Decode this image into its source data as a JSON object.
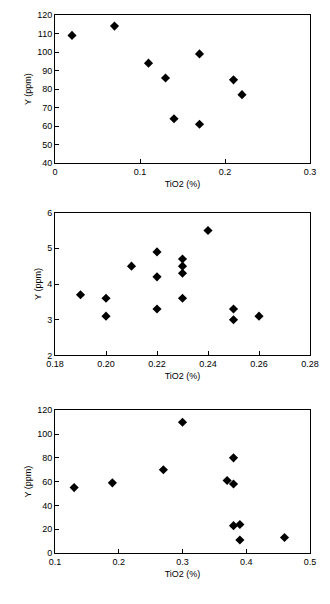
{
  "chart_data": [
    {
      "type": "scatter",
      "x_label": "TiO2 (%)",
      "y_label": "Y (ppm)",
      "x": [
        0.02,
        0.07,
        0.11,
        0.13,
        0.14,
        0.17,
        0.17,
        0.21,
        0.22
      ],
      "values": [
        109,
        114,
        94,
        86,
        64,
        99,
        61,
        85,
        77
      ],
      "color": "#000000",
      "marker": "diamond",
      "grid": false,
      "xlim": [
        0,
        0.3
      ],
      "xticks": [
        0,
        0.1,
        0.2,
        0.3
      ],
      "ylim": [
        40,
        120
      ],
      "yticks": [
        40,
        50,
        60,
        70,
        80,
        90,
        100,
        110,
        120
      ]
    },
    {
      "type": "scatter",
      "x_label": "TiO2 (%)",
      "y_label": "Y (ppm)",
      "x": [
        0.19,
        0.2,
        0.2,
        0.21,
        0.22,
        0.22,
        0.22,
        0.23,
        0.23,
        0.23,
        0.23,
        0.24,
        0.25,
        0.25,
        0.26
      ],
      "values": [
        3.7,
        3.6,
        3.1,
        4.5,
        4.9,
        4.2,
        3.3,
        4.7,
        4.5,
        4.3,
        3.6,
        5.5,
        3.3,
        3.0,
        3.1
      ],
      "color": "#000000",
      "marker": "diamond",
      "grid": false,
      "xlim": [
        0.18,
        0.28
      ],
      "xticks": [
        0.18,
        {
          "value": 0.2,
          "label": "0.20"
        },
        0.22,
        0.24,
        0.26,
        0.28
      ],
      "ylim": [
        2,
        6
      ],
      "yticks": [
        2,
        3,
        4,
        5,
        6
      ]
    },
    {
      "type": "scatter",
      "x_label": "TiO2 (%)",
      "y_label": "Y (ppm)",
      "x": [
        0.13,
        0.19,
        0.27,
        0.3,
        0.37,
        0.38,
        0.38,
        0.38,
        0.39,
        0.39,
        0.46
      ],
      "values": [
        55,
        59,
        70,
        110,
        61,
        80,
        58,
        23,
        24,
        11,
        13
      ],
      "color": "#000000",
      "marker": "diamond",
      "grid": false,
      "xlim": [
        0.1,
        0.5
      ],
      "xticks": [
        0.1,
        0.2,
        0.3,
        0.4,
        0.5
      ],
      "ylim": [
        0,
        120
      ],
      "yticks": [
        0,
        20,
        40,
        60,
        80,
        100,
        120
      ]
    }
  ]
}
